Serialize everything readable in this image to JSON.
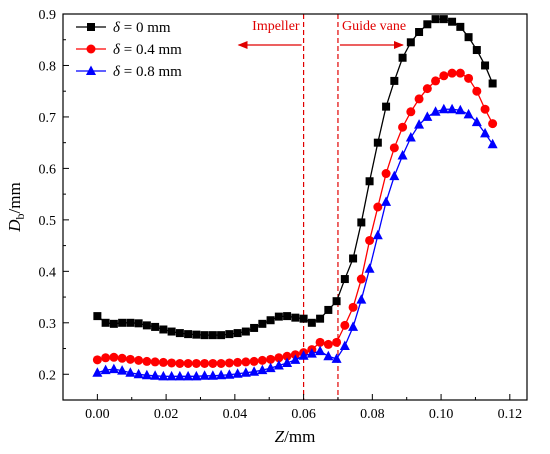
{
  "chart_data": {
    "type": "line",
    "xlabel_symbol": "Z",
    "xlabel_unit": "/mm",
    "ylabel_symbol": "D",
    "ylabel_sub": "b",
    "ylabel_unit": "/mm",
    "xlim": [
      -0.01,
      0.125
    ],
    "ylim": [
      0.15,
      0.9
    ],
    "xticks": [
      0.0,
      0.02,
      0.04,
      0.06,
      0.08,
      0.1,
      0.12
    ],
    "xtick_labels": [
      "0.00",
      "0.02",
      "0.04",
      "0.06",
      "0.08",
      "0.10",
      "0.12"
    ],
    "yticks": [
      0.2,
      0.3,
      0.4,
      0.5,
      0.6,
      0.7,
      0.8,
      0.9
    ],
    "ytick_labels": [
      "0.2",
      "0.3",
      "0.4",
      "0.5",
      "0.6",
      "0.7",
      "0.8",
      "0.9"
    ],
    "legend_position": "top-left",
    "annotations": {
      "impeller": {
        "label": "Impeller",
        "x": 0.06
      },
      "guide_vane": {
        "label": "Guide vane",
        "x": 0.07
      }
    },
    "x": [
      0.0,
      0.0024,
      0.0048,
      0.0072,
      0.0096,
      0.012,
      0.0144,
      0.0168,
      0.0192,
      0.0216,
      0.024,
      0.0264,
      0.0288,
      0.0312,
      0.0336,
      0.036,
      0.0384,
      0.0408,
      0.0432,
      0.0456,
      0.048,
      0.0504,
      0.0528,
      0.0552,
      0.0576,
      0.06,
      0.0624,
      0.0648,
      0.0672,
      0.0696,
      0.072,
      0.0744,
      0.0768,
      0.0792,
      0.0816,
      0.084,
      0.0864,
      0.0888,
      0.0912,
      0.0936,
      0.096,
      0.0984,
      0.1008,
      0.1032,
      0.1056,
      0.108,
      0.1104,
      0.1128,
      0.115
    ],
    "series": [
      {
        "name_symbol": "δ",
        "name_rest": " = 0 mm",
        "color": "#000000",
        "marker": "square",
        "values": [
          0.313,
          0.3,
          0.298,
          0.3,
          0.3,
          0.299,
          0.295,
          0.292,
          0.287,
          0.283,
          0.28,
          0.278,
          0.277,
          0.276,
          0.276,
          0.276,
          0.278,
          0.28,
          0.283,
          0.29,
          0.298,
          0.305,
          0.312,
          0.313,
          0.31,
          0.308,
          0.3,
          0.308,
          0.325,
          0.342,
          0.385,
          0.425,
          0.495,
          0.575,
          0.65,
          0.72,
          0.77,
          0.815,
          0.845,
          0.865,
          0.88,
          0.89,
          0.89,
          0.885,
          0.875,
          0.855,
          0.83,
          0.8,
          0.765
        ]
      },
      {
        "name_symbol": "δ",
        "name_rest": " = 0.4 mm",
        "color": "#ff0000",
        "marker": "circle",
        "values": [
          0.228,
          0.232,
          0.233,
          0.231,
          0.229,
          0.227,
          0.225,
          0.224,
          0.223,
          0.222,
          0.221,
          0.221,
          0.221,
          0.221,
          0.221,
          0.221,
          0.222,
          0.223,
          0.224,
          0.225,
          0.227,
          0.229,
          0.232,
          0.235,
          0.238,
          0.242,
          0.248,
          0.262,
          0.258,
          0.262,
          0.295,
          0.33,
          0.385,
          0.46,
          0.525,
          0.59,
          0.64,
          0.68,
          0.71,
          0.735,
          0.755,
          0.77,
          0.78,
          0.785,
          0.785,
          0.775,
          0.75,
          0.715,
          0.687
        ]
      },
      {
        "name_symbol": "δ",
        "name_rest": " = 0.8 mm",
        "color": "#0000ff",
        "marker": "triangle",
        "values": [
          0.203,
          0.208,
          0.21,
          0.207,
          0.203,
          0.2,
          0.198,
          0.197,
          0.196,
          0.196,
          0.196,
          0.196,
          0.196,
          0.197,
          0.197,
          0.198,
          0.199,
          0.201,
          0.203,
          0.205,
          0.208,
          0.212,
          0.217,
          0.222,
          0.228,
          0.236,
          0.24,
          0.245,
          0.235,
          0.23,
          0.255,
          0.292,
          0.345,
          0.405,
          0.47,
          0.535,
          0.585,
          0.625,
          0.66,
          0.685,
          0.7,
          0.71,
          0.715,
          0.715,
          0.713,
          0.705,
          0.69,
          0.668,
          0.647
        ]
      }
    ]
  }
}
